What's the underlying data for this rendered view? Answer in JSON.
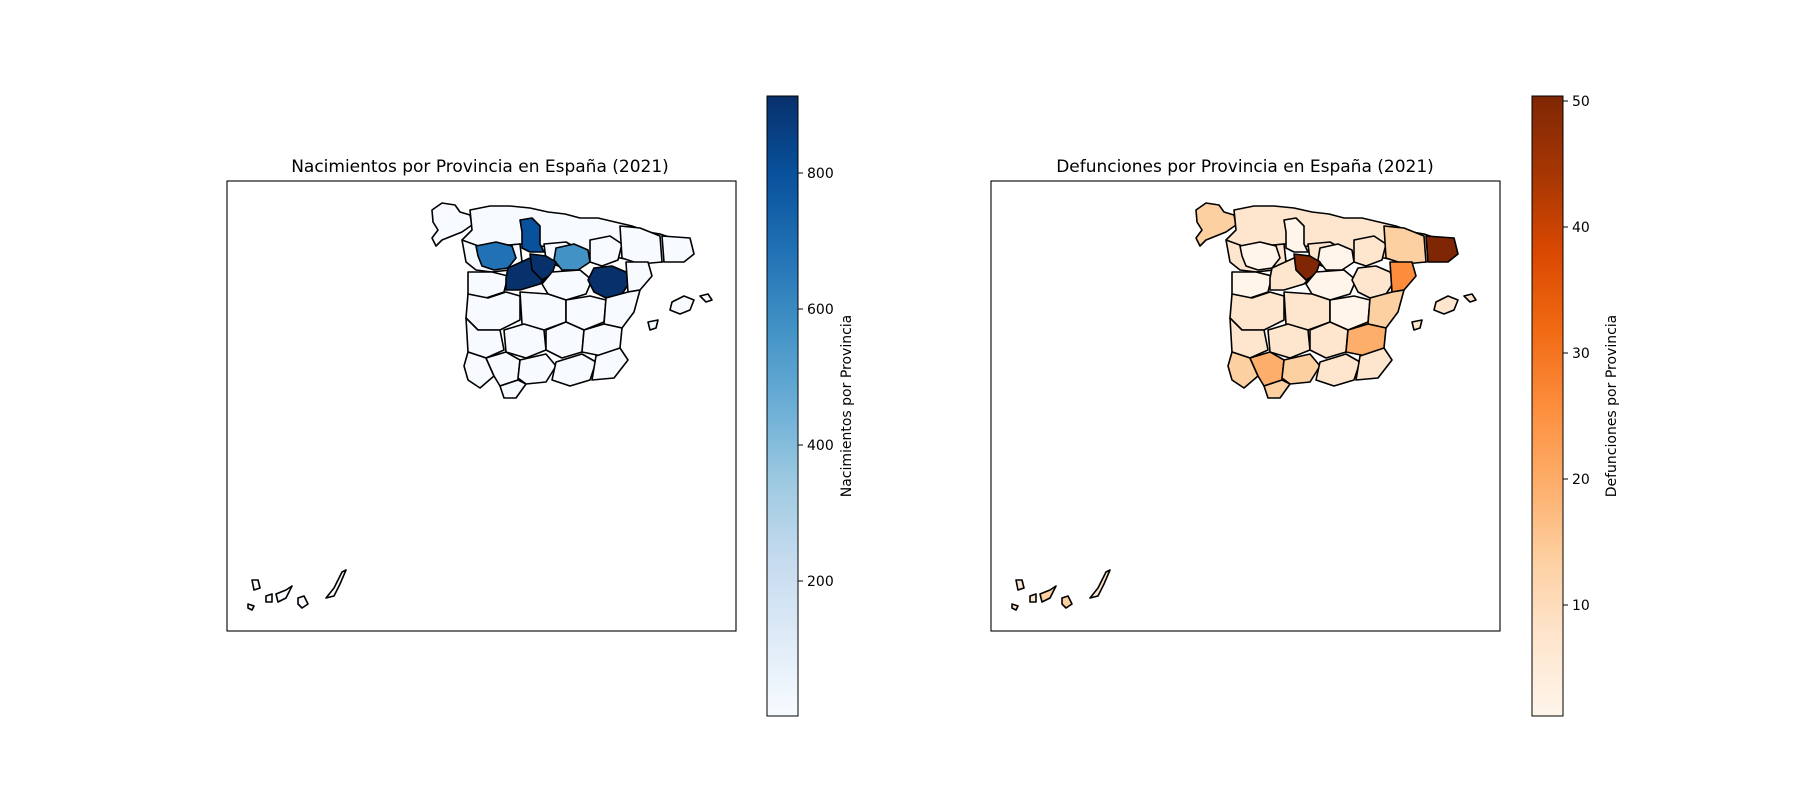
{
  "figure": {
    "left": {
      "title": "Nacimientos por Provincia en España (2021)",
      "colorbar_label": "Nacimientos por Provincia",
      "colorbar_ticks": [
        "200",
        "400",
        "600",
        "800"
      ],
      "colormap": "Blues",
      "colors": {
        "low": "#f7fbff",
        "mid": "#6baed6",
        "high": "#08306b"
      }
    },
    "right": {
      "title": "Defunciones por Provincia en España (2021)",
      "colorbar_label": "Defunciones por Provincia",
      "colorbar_ticks": [
        "10",
        "20",
        "30",
        "40",
        "50"
      ],
      "colormap": "Oranges",
      "colors": {
        "low": "#fff5eb",
        "mid": "#fd8d3c",
        "high": "#7f2704"
      }
    }
  }
}
